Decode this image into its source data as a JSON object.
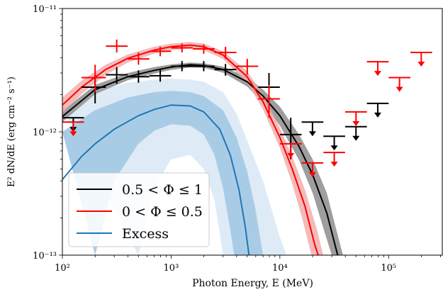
{
  "chart_data": {
    "type": "scatter",
    "xlabel": "Photon Energy, E (MeV)",
    "ylabel": "E² dN/dE (erg cm⁻² s⁻¹)",
    "x_scale": "log",
    "y_scale": "log",
    "xlim": [
      100,
      316228
    ],
    "ylim": [
      1e-13,
      1e-11
    ],
    "x_ticks": [
      {
        "value": 100,
        "label": "10²"
      },
      {
        "value": 1000,
        "label": "10³"
      },
      {
        "value": 10000,
        "label": "10⁴"
      },
      {
        "value": 100000,
        "label": "10⁵"
      }
    ],
    "y_ticks": [
      {
        "value": 1e-13,
        "label": "10⁻¹³"
      },
      {
        "value": 1e-12,
        "label": "10⁻¹²"
      },
      {
        "value": 1e-11,
        "label": "10⁻¹¹"
      }
    ],
    "legend_position": "lower-left",
    "series": [
      {
        "name": "0.5 < Φ ≤ 1",
        "color": "#000000",
        "band_color": "#9e9e9e",
        "model": [
          {
            "x": 100,
            "y": 1.33e-12
          },
          {
            "x": 200,
            "y": 2.2e-12
          },
          {
            "x": 400,
            "y": 2.8e-12
          },
          {
            "x": 700,
            "y": 3.15e-12
          },
          {
            "x": 1000,
            "y": 3.35e-12
          },
          {
            "x": 1500,
            "y": 3.5e-12
          },
          {
            "x": 2000,
            "y": 3.45e-12
          },
          {
            "x": 3000,
            "y": 3.2e-12
          },
          {
            "x": 5000,
            "y": 2.55e-12
          },
          {
            "x": 7000,
            "y": 1.95e-12
          },
          {
            "x": 10000,
            "y": 1.35e-12
          },
          {
            "x": 15000,
            "y": 7.6e-13
          },
          {
            "x": 20000,
            "y": 4.5e-13
          },
          {
            "x": 27000,
            "y": 2.2e-13
          },
          {
            "x": 34000,
            "y": 1e-13
          }
        ],
        "band_upper": [
          {
            "x": 100,
            "y": 1.48e-12
          },
          {
            "x": 200,
            "y": 2.4e-12
          },
          {
            "x": 400,
            "y": 3e-12
          },
          {
            "x": 700,
            "y": 3.35e-12
          },
          {
            "x": 1000,
            "y": 3.52e-12
          },
          {
            "x": 1500,
            "y": 3.65e-12
          },
          {
            "x": 2000,
            "y": 3.6e-12
          },
          {
            "x": 3000,
            "y": 3.38e-12
          },
          {
            "x": 5000,
            "y": 2.78e-12
          },
          {
            "x": 7000,
            "y": 2.2e-12
          },
          {
            "x": 10000,
            "y": 1.6e-12
          },
          {
            "x": 15000,
            "y": 9.5e-13
          },
          {
            "x": 20000,
            "y": 6e-13
          },
          {
            "x": 27000,
            "y": 3.2e-13
          },
          {
            "x": 38000,
            "y": 1e-13
          }
        ],
        "band_lower": [
          {
            "x": 100,
            "y": 1.2e-12
          },
          {
            "x": 200,
            "y": 2.02e-12
          },
          {
            "x": 400,
            "y": 2.62e-12
          },
          {
            "x": 700,
            "y": 2.97e-12
          },
          {
            "x": 1000,
            "y": 3.18e-12
          },
          {
            "x": 1500,
            "y": 3.33e-12
          },
          {
            "x": 2000,
            "y": 3.3e-12
          },
          {
            "x": 3000,
            "y": 3.02e-12
          },
          {
            "x": 5000,
            "y": 2.33e-12
          },
          {
            "x": 7000,
            "y": 1.72e-12
          },
          {
            "x": 10000,
            "y": 1.12e-12
          },
          {
            "x": 15000,
            "y": 5.9e-13
          },
          {
            "x": 20000,
            "y": 3.2e-13
          },
          {
            "x": 26000,
            "y": 1.5e-13
          },
          {
            "x": 30000,
            "y": 1e-13
          }
        ],
        "points": [
          {
            "x": 200,
            "y": 2.3e-12,
            "x_lo": 150,
            "x_hi": 251,
            "y_lo": 1.7e-12,
            "y_hi": 2.9e-12
          },
          {
            "x": 316,
            "y": 2.9e-12,
            "x_lo": 251,
            "x_hi": 398,
            "y_lo": 2.45e-12,
            "y_hi": 3.35e-12
          },
          {
            "x": 501,
            "y": 2.8e-12,
            "x_lo": 398,
            "x_hi": 631,
            "y_lo": 2.5e-12,
            "y_hi": 3.15e-12
          },
          {
            "x": 794,
            "y": 2.85e-12,
            "x_lo": 631,
            "x_hi": 1000,
            "y_lo": 2.55e-12,
            "y_hi": 3.2e-12
          },
          {
            "x": 1259,
            "y": 3.4e-12,
            "x_lo": 1000,
            "x_hi": 1585,
            "y_lo": 3.1e-12,
            "y_hi": 3.75e-12
          },
          {
            "x": 1995,
            "y": 3.4e-12,
            "x_lo": 1585,
            "x_hi": 2512,
            "y_lo": 3.1e-12,
            "y_hi": 3.75e-12
          },
          {
            "x": 3162,
            "y": 3.2e-12,
            "x_lo": 2512,
            "x_hi": 3981,
            "y_lo": 2.85e-12,
            "y_hi": 3.55e-12
          },
          {
            "x": 7943,
            "y": 2.3e-12,
            "x_lo": 6310,
            "x_hi": 10000,
            "y_lo": 1.6e-12,
            "y_hi": 3e-12
          },
          {
            "x": 12589,
            "y": 9.5e-13,
            "x_lo": 10000,
            "x_hi": 15849,
            "y_lo": 6e-13,
            "y_hi": 1.3e-12
          }
        ],
        "upper_limits": [
          {
            "x": 126,
            "y": 1.3e-12,
            "x_lo": 100,
            "x_hi": 158
          },
          {
            "x": 19953,
            "y": 1.2e-12,
            "x_lo": 15849,
            "x_hi": 25119
          },
          {
            "x": 31623,
            "y": 9.2e-13,
            "x_lo": 25119,
            "x_hi": 39811
          },
          {
            "x": 50119,
            "y": 1.1e-12,
            "x_lo": 39811,
            "x_hi": 63096
          },
          {
            "x": 79433,
            "y": 1.7e-12,
            "x_lo": 63096,
            "x_hi": 100000
          }
        ]
      },
      {
        "name": "0 < Φ ≤ 0.5",
        "color": "#ff0000",
        "band_color": "#f3a9a9",
        "model": [
          {
            "x": 100,
            "y": 1.65e-12
          },
          {
            "x": 150,
            "y": 2.3e-12
          },
          {
            "x": 250,
            "y": 3.2e-12
          },
          {
            "x": 400,
            "y": 3.95e-12
          },
          {
            "x": 700,
            "y": 4.6e-12
          },
          {
            "x": 1000,
            "y": 4.9e-12
          },
          {
            "x": 1500,
            "y": 5.05e-12
          },
          {
            "x": 2000,
            "y": 4.9e-12
          },
          {
            "x": 3000,
            "y": 4.2e-12
          },
          {
            "x": 5000,
            "y": 2.8e-12
          },
          {
            "x": 7000,
            "y": 1.75e-12
          },
          {
            "x": 10000,
            "y": 9e-13
          },
          {
            "x": 13000,
            "y": 5e-13
          },
          {
            "x": 17000,
            "y": 2.5e-13
          },
          {
            "x": 21000,
            "y": 1.2e-13
          },
          {
            "x": 22500,
            "y": 1e-13
          }
        ],
        "band_upper": [
          {
            "x": 100,
            "y": 1.9e-12
          },
          {
            "x": 150,
            "y": 2.6e-12
          },
          {
            "x": 250,
            "y": 3.5e-12
          },
          {
            "x": 400,
            "y": 4.25e-12
          },
          {
            "x": 700,
            "y": 4.9e-12
          },
          {
            "x": 1000,
            "y": 5.2e-12
          },
          {
            "x": 1500,
            "y": 5.35e-12
          },
          {
            "x": 2000,
            "y": 5.2e-12
          },
          {
            "x": 3000,
            "y": 4.5e-12
          },
          {
            "x": 5000,
            "y": 3.1e-12
          },
          {
            "x": 7000,
            "y": 2e-12
          },
          {
            "x": 10000,
            "y": 1.08e-12
          },
          {
            "x": 13000,
            "y": 6.3e-13
          },
          {
            "x": 17000,
            "y": 3.4e-13
          },
          {
            "x": 22000,
            "y": 1.6e-13
          },
          {
            "x": 25000,
            "y": 1e-13
          }
        ],
        "band_lower": [
          {
            "x": 100,
            "y": 1.42e-12
          },
          {
            "x": 150,
            "y": 2.02e-12
          },
          {
            "x": 250,
            "y": 2.9e-12
          },
          {
            "x": 400,
            "y": 3.65e-12
          },
          {
            "x": 700,
            "y": 4.3e-12
          },
          {
            "x": 1000,
            "y": 4.6e-12
          },
          {
            "x": 1500,
            "y": 4.75e-12
          },
          {
            "x": 2000,
            "y": 4.6e-12
          },
          {
            "x": 3000,
            "y": 3.9e-12
          },
          {
            "x": 5000,
            "y": 2.5e-12
          },
          {
            "x": 7000,
            "y": 1.52e-12
          },
          {
            "x": 10000,
            "y": 7.4e-13
          },
          {
            "x": 13000,
            "y": 3.8e-13
          },
          {
            "x": 16000,
            "y": 2e-13
          },
          {
            "x": 19500,
            "y": 1e-13
          }
        ],
        "points": [
          {
            "x": 200,
            "y": 2.75e-12,
            "x_lo": 150,
            "x_hi": 251,
            "y_lo": 2.1e-12,
            "y_hi": 3.5e-12
          },
          {
            "x": 316,
            "y": 4.95e-12,
            "x_lo": 251,
            "x_hi": 398,
            "y_lo": 4.4e-12,
            "y_hi": 5.6e-12
          },
          {
            "x": 501,
            "y": 3.9e-12,
            "x_lo": 398,
            "x_hi": 631,
            "y_lo": 3.5e-12,
            "y_hi": 4.4e-12
          },
          {
            "x": 794,
            "y": 4.5e-12,
            "x_lo": 631,
            "x_hi": 1000,
            "y_lo": 4.1e-12,
            "y_hi": 4.9e-12
          },
          {
            "x": 1259,
            "y": 4.8e-12,
            "x_lo": 1000,
            "x_hi": 1585,
            "y_lo": 4.4e-12,
            "y_hi": 5.2e-12
          },
          {
            "x": 1995,
            "y": 4.7e-12,
            "x_lo": 1585,
            "x_hi": 2512,
            "y_lo": 4.3e-12,
            "y_hi": 5.1e-12
          },
          {
            "x": 3162,
            "y": 4.4e-12,
            "x_lo": 2512,
            "x_hi": 3981,
            "y_lo": 3.9e-12,
            "y_hi": 4.9e-12
          },
          {
            "x": 5012,
            "y": 3.4e-12,
            "x_lo": 3981,
            "x_hi": 6310,
            "y_lo": 2.9e-12,
            "y_hi": 3.9e-12
          },
          {
            "x": 7943,
            "y": 1.85e-12,
            "x_lo": 6310,
            "x_hi": 10000,
            "y_lo": 1.3e-12,
            "y_hi": 2.4e-12
          }
        ],
        "upper_limits": [
          {
            "x": 126,
            "y": 1.2e-12,
            "x_lo": 100,
            "x_hi": 158
          },
          {
            "x": 12589,
            "y": 8e-13,
            "x_lo": 10000,
            "x_hi": 15849
          },
          {
            "x": 19953,
            "y": 5.6e-13,
            "x_lo": 15849,
            "x_hi": 25119
          },
          {
            "x": 31623,
            "y": 6.8e-13,
            "x_lo": 25119,
            "x_hi": 39811
          },
          {
            "x": 50119,
            "y": 1.45e-12,
            "x_lo": 39811,
            "x_hi": 63096
          },
          {
            "x": 79433,
            "y": 3.7e-12,
            "x_lo": 63096,
            "x_hi": 100000
          },
          {
            "x": 125893,
            "y": 2.75e-12,
            "x_lo": 100000,
            "x_hi": 158489
          },
          {
            "x": 199526,
            "y": 4.4e-12,
            "x_lo": 158489,
            "x_hi": 251189
          }
        ]
      },
      {
        "name": "Excess",
        "color": "#1f77b4",
        "band_colors": [
          "#deebf7",
          "#a9cce6"
        ],
        "model": [
          {
            "x": 100,
            "y": 4.1e-13
          },
          {
            "x": 150,
            "y": 6.3e-13
          },
          {
            "x": 200,
            "y": 8e-13
          },
          {
            "x": 300,
            "y": 1.05e-12
          },
          {
            "x": 500,
            "y": 1.35e-12
          },
          {
            "x": 700,
            "y": 1.52e-12
          },
          {
            "x": 1000,
            "y": 1.65e-12
          },
          {
            "x": 1500,
            "y": 1.62e-12
          },
          {
            "x": 2000,
            "y": 1.45e-12
          },
          {
            "x": 2800,
            "y": 1.05e-12
          },
          {
            "x": 3500,
            "y": 6.5e-13
          },
          {
            "x": 4200,
            "y": 3.4e-13
          },
          {
            "x": 4800,
            "y": 1.7e-13
          },
          {
            "x": 5200,
            "y": 1e-13
          }
        ],
        "band_1sigma_upper": [
          {
            "x": 100,
            "y": 1e-12
          },
          {
            "x": 200,
            "y": 1.5e-12
          },
          {
            "x": 400,
            "y": 1.9e-12
          },
          {
            "x": 700,
            "y": 2.1e-12
          },
          {
            "x": 1000,
            "y": 2.15e-12
          },
          {
            "x": 1500,
            "y": 2.1e-12
          },
          {
            "x": 2000,
            "y": 1.95e-12
          },
          {
            "x": 3000,
            "y": 1.5e-12
          },
          {
            "x": 4000,
            "y": 9e-13
          },
          {
            "x": 5000,
            "y": 4.8e-13
          },
          {
            "x": 6000,
            "y": 2.3e-13
          },
          {
            "x": 7000,
            "y": 1e-13
          }
        ],
        "band_1sigma_lower": [
          {
            "x": 200,
            "y": 1e-13
          },
          {
            "x": 300,
            "y": 4e-13
          },
          {
            "x": 500,
            "y": 8e-13
          },
          {
            "x": 700,
            "y": 1.02e-12
          },
          {
            "x": 1000,
            "y": 1.15e-12
          },
          {
            "x": 1500,
            "y": 1.12e-12
          },
          {
            "x": 2000,
            "y": 9.5e-13
          },
          {
            "x": 2500,
            "y": 6.5e-13
          },
          {
            "x": 3000,
            "y": 3.5e-13
          },
          {
            "x": 3500,
            "y": 1.6e-13
          },
          {
            "x": 3800,
            "y": 1e-13
          }
        ],
        "band_2sigma_upper": [
          {
            "x": 100,
            "y": 1.55e-12
          },
          {
            "x": 200,
            "y": 2.1e-12
          },
          {
            "x": 400,
            "y": 2.5e-12
          },
          {
            "x": 700,
            "y": 2.65e-12
          },
          {
            "x": 1000,
            "y": 2.7e-12
          },
          {
            "x": 1500,
            "y": 2.65e-12
          },
          {
            "x": 2000,
            "y": 2.55e-12
          },
          {
            "x": 3000,
            "y": 2.1e-12
          },
          {
            "x": 4000,
            "y": 1.4e-12
          },
          {
            "x": 5000,
            "y": 8.5e-13
          },
          {
            "x": 7000,
            "y": 4e-13
          },
          {
            "x": 10000,
            "y": 1.4e-13
          },
          {
            "x": 11500,
            "y": 1e-13
          }
        ],
        "band_2sigma_lower": [
          {
            "x": 500,
            "y": 1e-13
          },
          {
            "x": 700,
            "y": 3.5e-13
          },
          {
            "x": 1000,
            "y": 6e-13
          },
          {
            "x": 1500,
            "y": 6.5e-13
          },
          {
            "x": 2000,
            "y": 5e-13
          },
          {
            "x": 2500,
            "y": 2.8e-13
          },
          {
            "x": 2800,
            "y": 1.5e-13
          },
          {
            "x": 3000,
            "y": 1e-13
          }
        ]
      }
    ]
  }
}
